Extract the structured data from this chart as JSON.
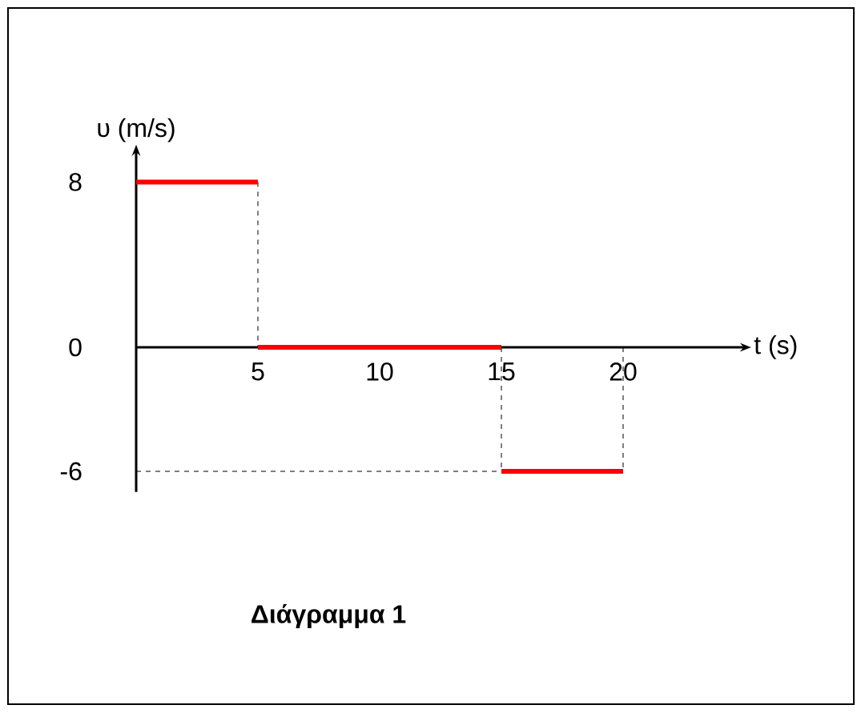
{
  "chart_data": {
    "type": "line",
    "xlabel": "t (s)",
    "ylabel": "υ (m/s)",
    "annotations": [
      "Διάγραμμα 1"
    ],
    "xlim": [
      0,
      25
    ],
    "ylim": [
      -7,
      9.5
    ],
    "xticks": [
      5,
      10,
      15,
      20
    ],
    "yticks": [
      -6,
      0,
      8
    ],
    "line_style": "solid",
    "series": [
      {
        "color": "#000000",
        "line_style": "dashed",
        "x": [
          5,
          5
        ],
        "values": [
          8,
          0
        ]
      },
      {
        "color": "#000000",
        "line_style": "dashed",
        "x": [
          15,
          15
        ],
        "values": [
          0,
          -6
        ]
      },
      {
        "color": "#000000",
        "line_style": "dashed",
        "x": [
          20,
          20
        ],
        "values": [
          0,
          -6
        ]
      },
      {
        "color": "#000000",
        "line_style": "dashed",
        "x": [
          0,
          15
        ],
        "values": [
          -6,
          -6
        ]
      },
      {
        "color": "#ff0000",
        "x": [
          0,
          5
        ],
        "values": [
          8,
          8
        ]
      },
      {
        "color": "#ff0000",
        "x": [
          5,
          15
        ],
        "values": [
          0,
          0
        ]
      },
      {
        "color": "#ff0000",
        "x": [
          15,
          20
        ],
        "values": [
          -6,
          -6
        ]
      }
    ]
  }
}
